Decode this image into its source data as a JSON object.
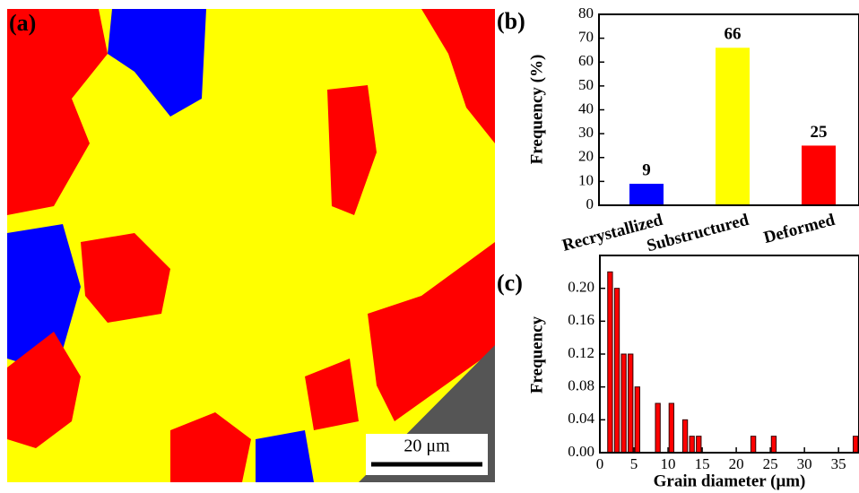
{
  "figure": {
    "panel_labels": [
      "(a)",
      "(b)",
      "(c)"
    ],
    "scale_bar": "20 μm"
  },
  "chart_data": [
    {
      "type": "bar",
      "ylabel": "Frequency (%)",
      "categories": [
        "Recrystallized",
        "Substructured",
        "Deformed"
      ],
      "values": [
        9,
        66,
        25
      ],
      "colors": [
        "#0000ff",
        "#ffff00",
        "#ff0000"
      ],
      "ylim": [
        0,
        80
      ],
      "yticks": [
        0,
        10,
        20,
        30,
        40,
        50,
        60,
        70,
        80
      ]
    },
    {
      "type": "histogram",
      "ylabel": "Frequency",
      "xlabel": "Grain diameter (μm)",
      "bins": [
        1,
        2,
        3,
        4,
        5,
        6,
        7,
        8,
        9,
        10,
        11,
        12,
        13,
        14,
        15,
        16,
        17,
        18,
        19,
        20,
        21,
        22,
        23,
        24,
        25,
        26,
        27,
        28,
        29,
        30,
        31,
        32,
        33,
        34,
        35,
        36,
        37,
        38
      ],
      "values": [
        0.22,
        0.2,
        0.12,
        0.12,
        0.08,
        0,
        0,
        0.06,
        0,
        0.06,
        0,
        0.04,
        0.02,
        0.02,
        0,
        0,
        0,
        0,
        0,
        0,
        0,
        0.02,
        0,
        0,
        0.02,
        0,
        0,
        0,
        0,
        0,
        0,
        0,
        0,
        0,
        0,
        0,
        0.02
      ],
      "color": "#ff0000",
      "xlim": [
        0,
        38
      ],
      "xticks": [
        0,
        5,
        10,
        15,
        20,
        25,
        30,
        35
      ],
      "ylim": [
        0,
        0.24
      ],
      "yticks": [
        {
          "value": 0,
          "label": "0.00"
        },
        {
          "value": 0.04,
          "label": "0.04"
        },
        {
          "value": 0.08,
          "label": "0.08"
        },
        {
          "value": 0.12,
          "label": "0.12"
        },
        {
          "value": 0.16,
          "label": "0.16"
        },
        {
          "value": 0.2,
          "label": "0.20"
        }
      ]
    }
  ]
}
